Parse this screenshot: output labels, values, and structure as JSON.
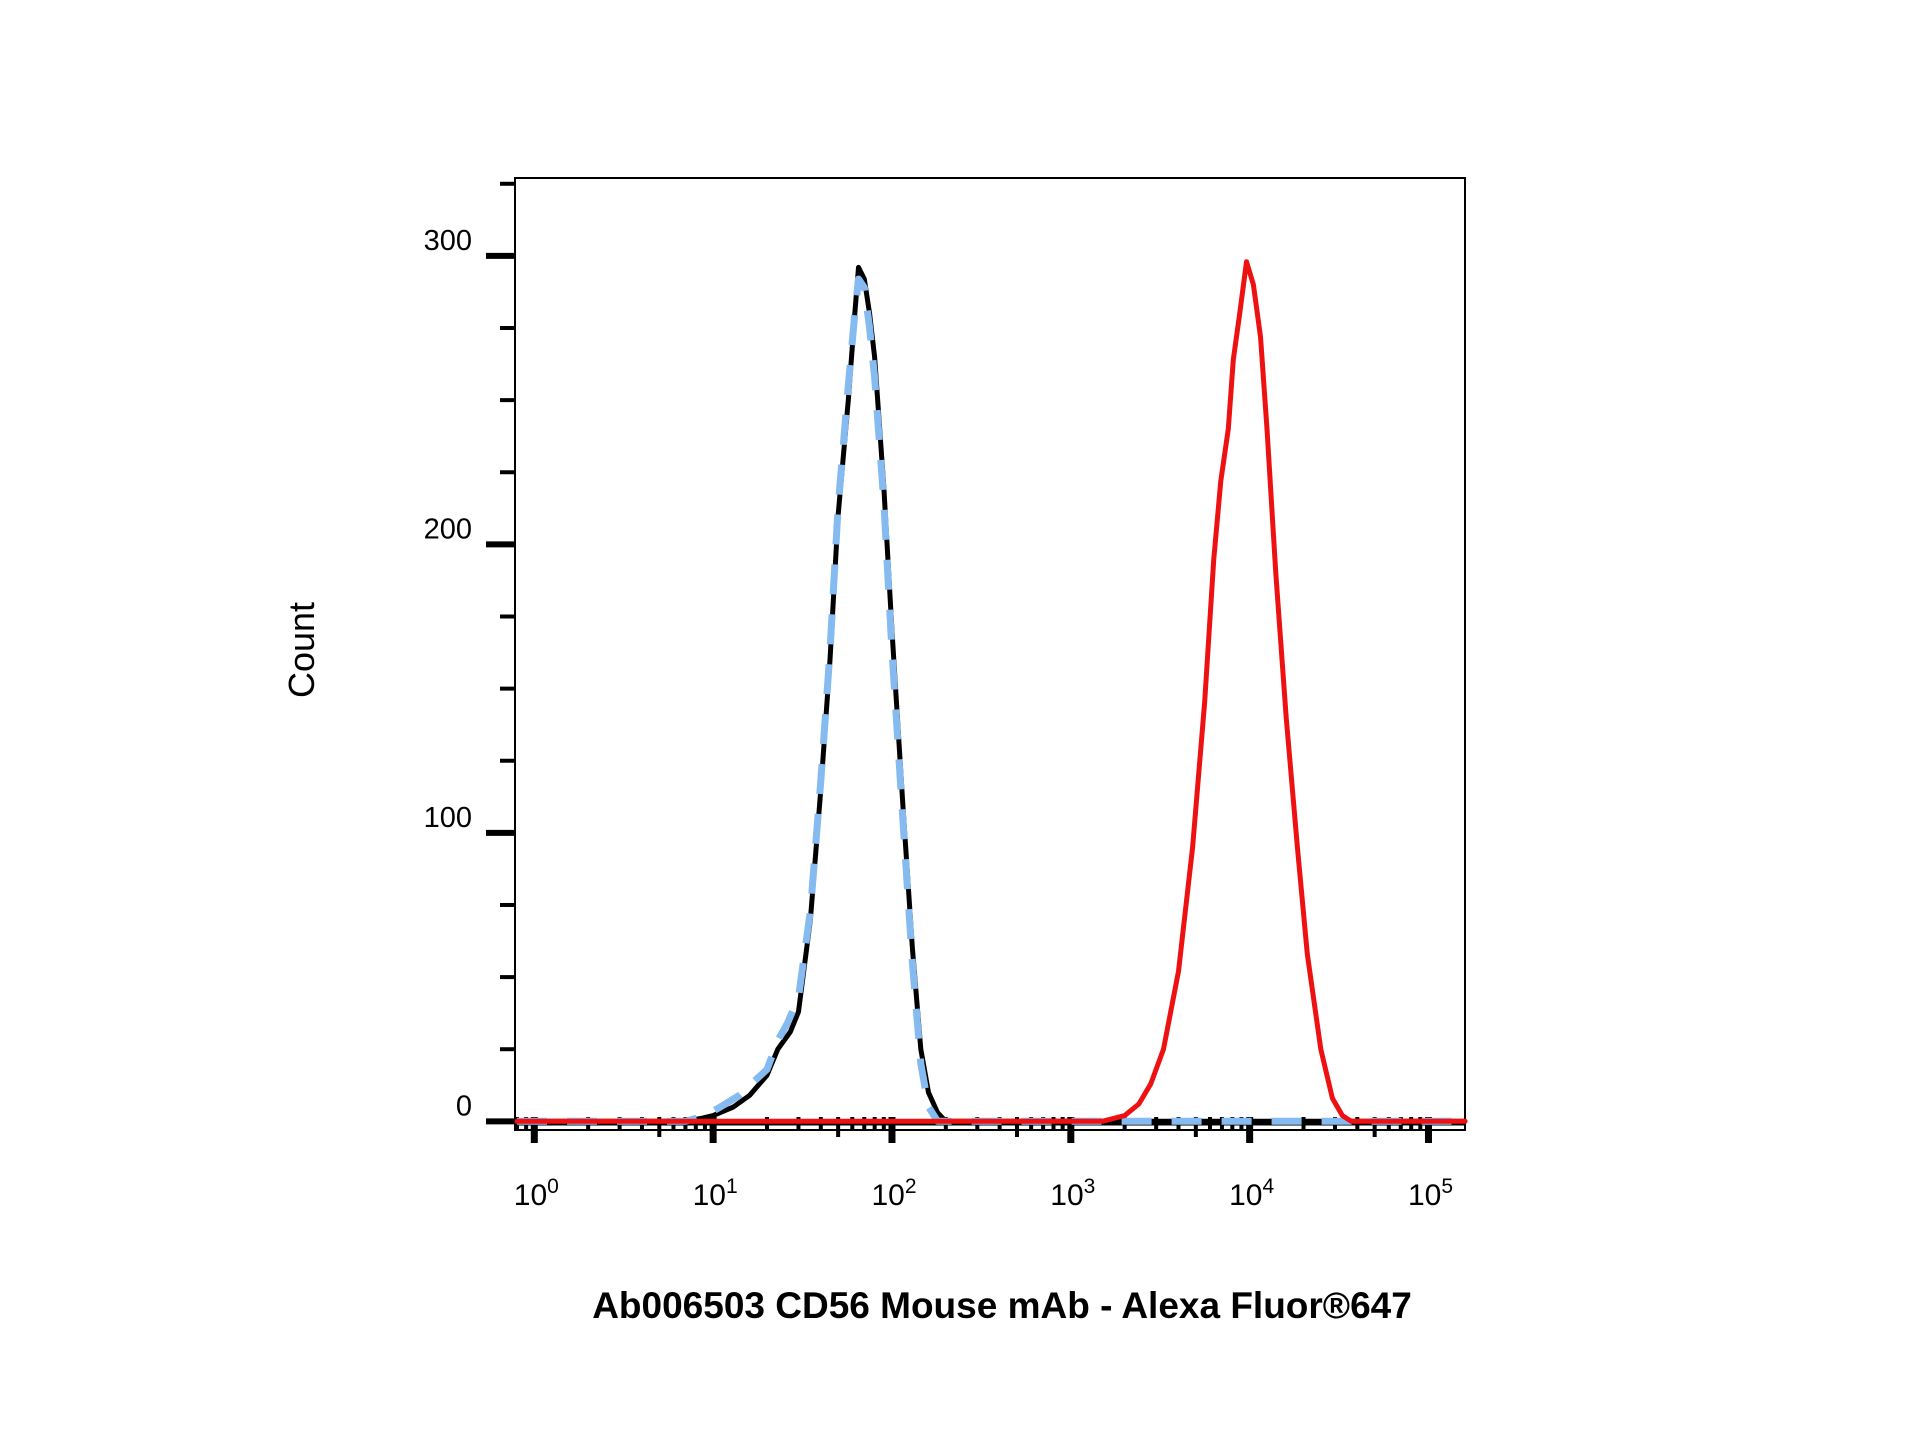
{
  "chart_data": {
    "type": "line",
    "title": "",
    "xlabel": "Ab006503 CD56 Mouse mAb - Alexa Fluor®647",
    "ylabel": "Count",
    "x_scale": "log",
    "xlim": [
      0.78,
      160000
    ],
    "ylim": [
      -3,
      327
    ],
    "x_ticks": [
      {
        "base": "10",
        "exp": "0",
        "value": 1
      },
      {
        "base": "10",
        "exp": "1",
        "value": 10
      },
      {
        "base": "10",
        "exp": "2",
        "value": 100
      },
      {
        "base": "10",
        "exp": "3",
        "value": 1000
      },
      {
        "base": "10",
        "exp": "4",
        "value": 10000
      },
      {
        "base": "10",
        "exp": "5",
        "value": 100000
      }
    ],
    "y_ticks": [
      {
        "label": "0",
        "value": 0
      },
      {
        "label": "100",
        "value": 100
      },
      {
        "label": "200",
        "value": 200
      },
      {
        "label": "300",
        "value": 300
      }
    ],
    "grid": false,
    "legend": "none",
    "series": [
      {
        "color": "#000000",
        "dash": "solid",
        "points": [
          [
            0.8,
            0
          ],
          [
            7,
            0
          ],
          [
            8.5,
            1
          ],
          [
            10,
            2
          ],
          [
            13,
            5
          ],
          [
            16,
            9
          ],
          [
            20,
            16
          ],
          [
            23,
            25
          ],
          [
            27,
            31
          ],
          [
            30,
            38
          ],
          [
            35,
            70
          ],
          [
            40,
            115
          ],
          [
            45,
            160
          ],
          [
            50,
            210
          ],
          [
            57,
            250
          ],
          [
            62,
            280
          ],
          [
            65,
            296
          ],
          [
            70,
            292
          ],
          [
            75,
            280
          ],
          [
            80,
            265
          ],
          [
            90,
            220
          ],
          [
            100,
            170
          ],
          [
            115,
            110
          ],
          [
            130,
            60
          ],
          [
            145,
            25
          ],
          [
            160,
            10
          ],
          [
            180,
            3
          ],
          [
            200,
            0
          ],
          [
            160000,
            0
          ]
        ]
      },
      {
        "color": "#85bbf0",
        "dash": "dashed",
        "points": [
          [
            0.8,
            0
          ],
          [
            7,
            0
          ],
          [
            9,
            2
          ],
          [
            11,
            5
          ],
          [
            14,
            9
          ],
          [
            17,
            14
          ],
          [
            20,
            18
          ],
          [
            23,
            28
          ],
          [
            26,
            34
          ],
          [
            30,
            43
          ],
          [
            35,
            73
          ],
          [
            40,
            118
          ],
          [
            45,
            163
          ],
          [
            50,
            213
          ],
          [
            57,
            255
          ],
          [
            62,
            280
          ],
          [
            65,
            292
          ],
          [
            70,
            289
          ],
          [
            75,
            275
          ],
          [
            80,
            258
          ],
          [
            90,
            215
          ],
          [
            100,
            163
          ],
          [
            115,
            105
          ],
          [
            130,
            55
          ],
          [
            145,
            20
          ],
          [
            160,
            5
          ],
          [
            180,
            0
          ],
          [
            160000,
            0
          ]
        ]
      },
      {
        "color": "#ee1111",
        "dash": "solid",
        "points": [
          [
            0.8,
            0
          ],
          [
            1500,
            0
          ],
          [
            2000,
            2
          ],
          [
            2400,
            6
          ],
          [
            2800,
            13
          ],
          [
            3300,
            25
          ],
          [
            4000,
            52
          ],
          [
            4800,
            95
          ],
          [
            5600,
            145
          ],
          [
            6300,
            195
          ],
          [
            6900,
            222
          ],
          [
            7600,
            240
          ],
          [
            8100,
            264
          ],
          [
            8800,
            280
          ],
          [
            9600,
            298
          ],
          [
            10500,
            290
          ],
          [
            11500,
            272
          ],
          [
            12500,
            240
          ],
          [
            14000,
            190
          ],
          [
            16000,
            140
          ],
          [
            18500,
            95
          ],
          [
            21000,
            58
          ],
          [
            25000,
            25
          ],
          [
            29000,
            8
          ],
          [
            33000,
            2
          ],
          [
            37000,
            0
          ],
          [
            160000,
            0
          ]
        ]
      }
    ]
  }
}
